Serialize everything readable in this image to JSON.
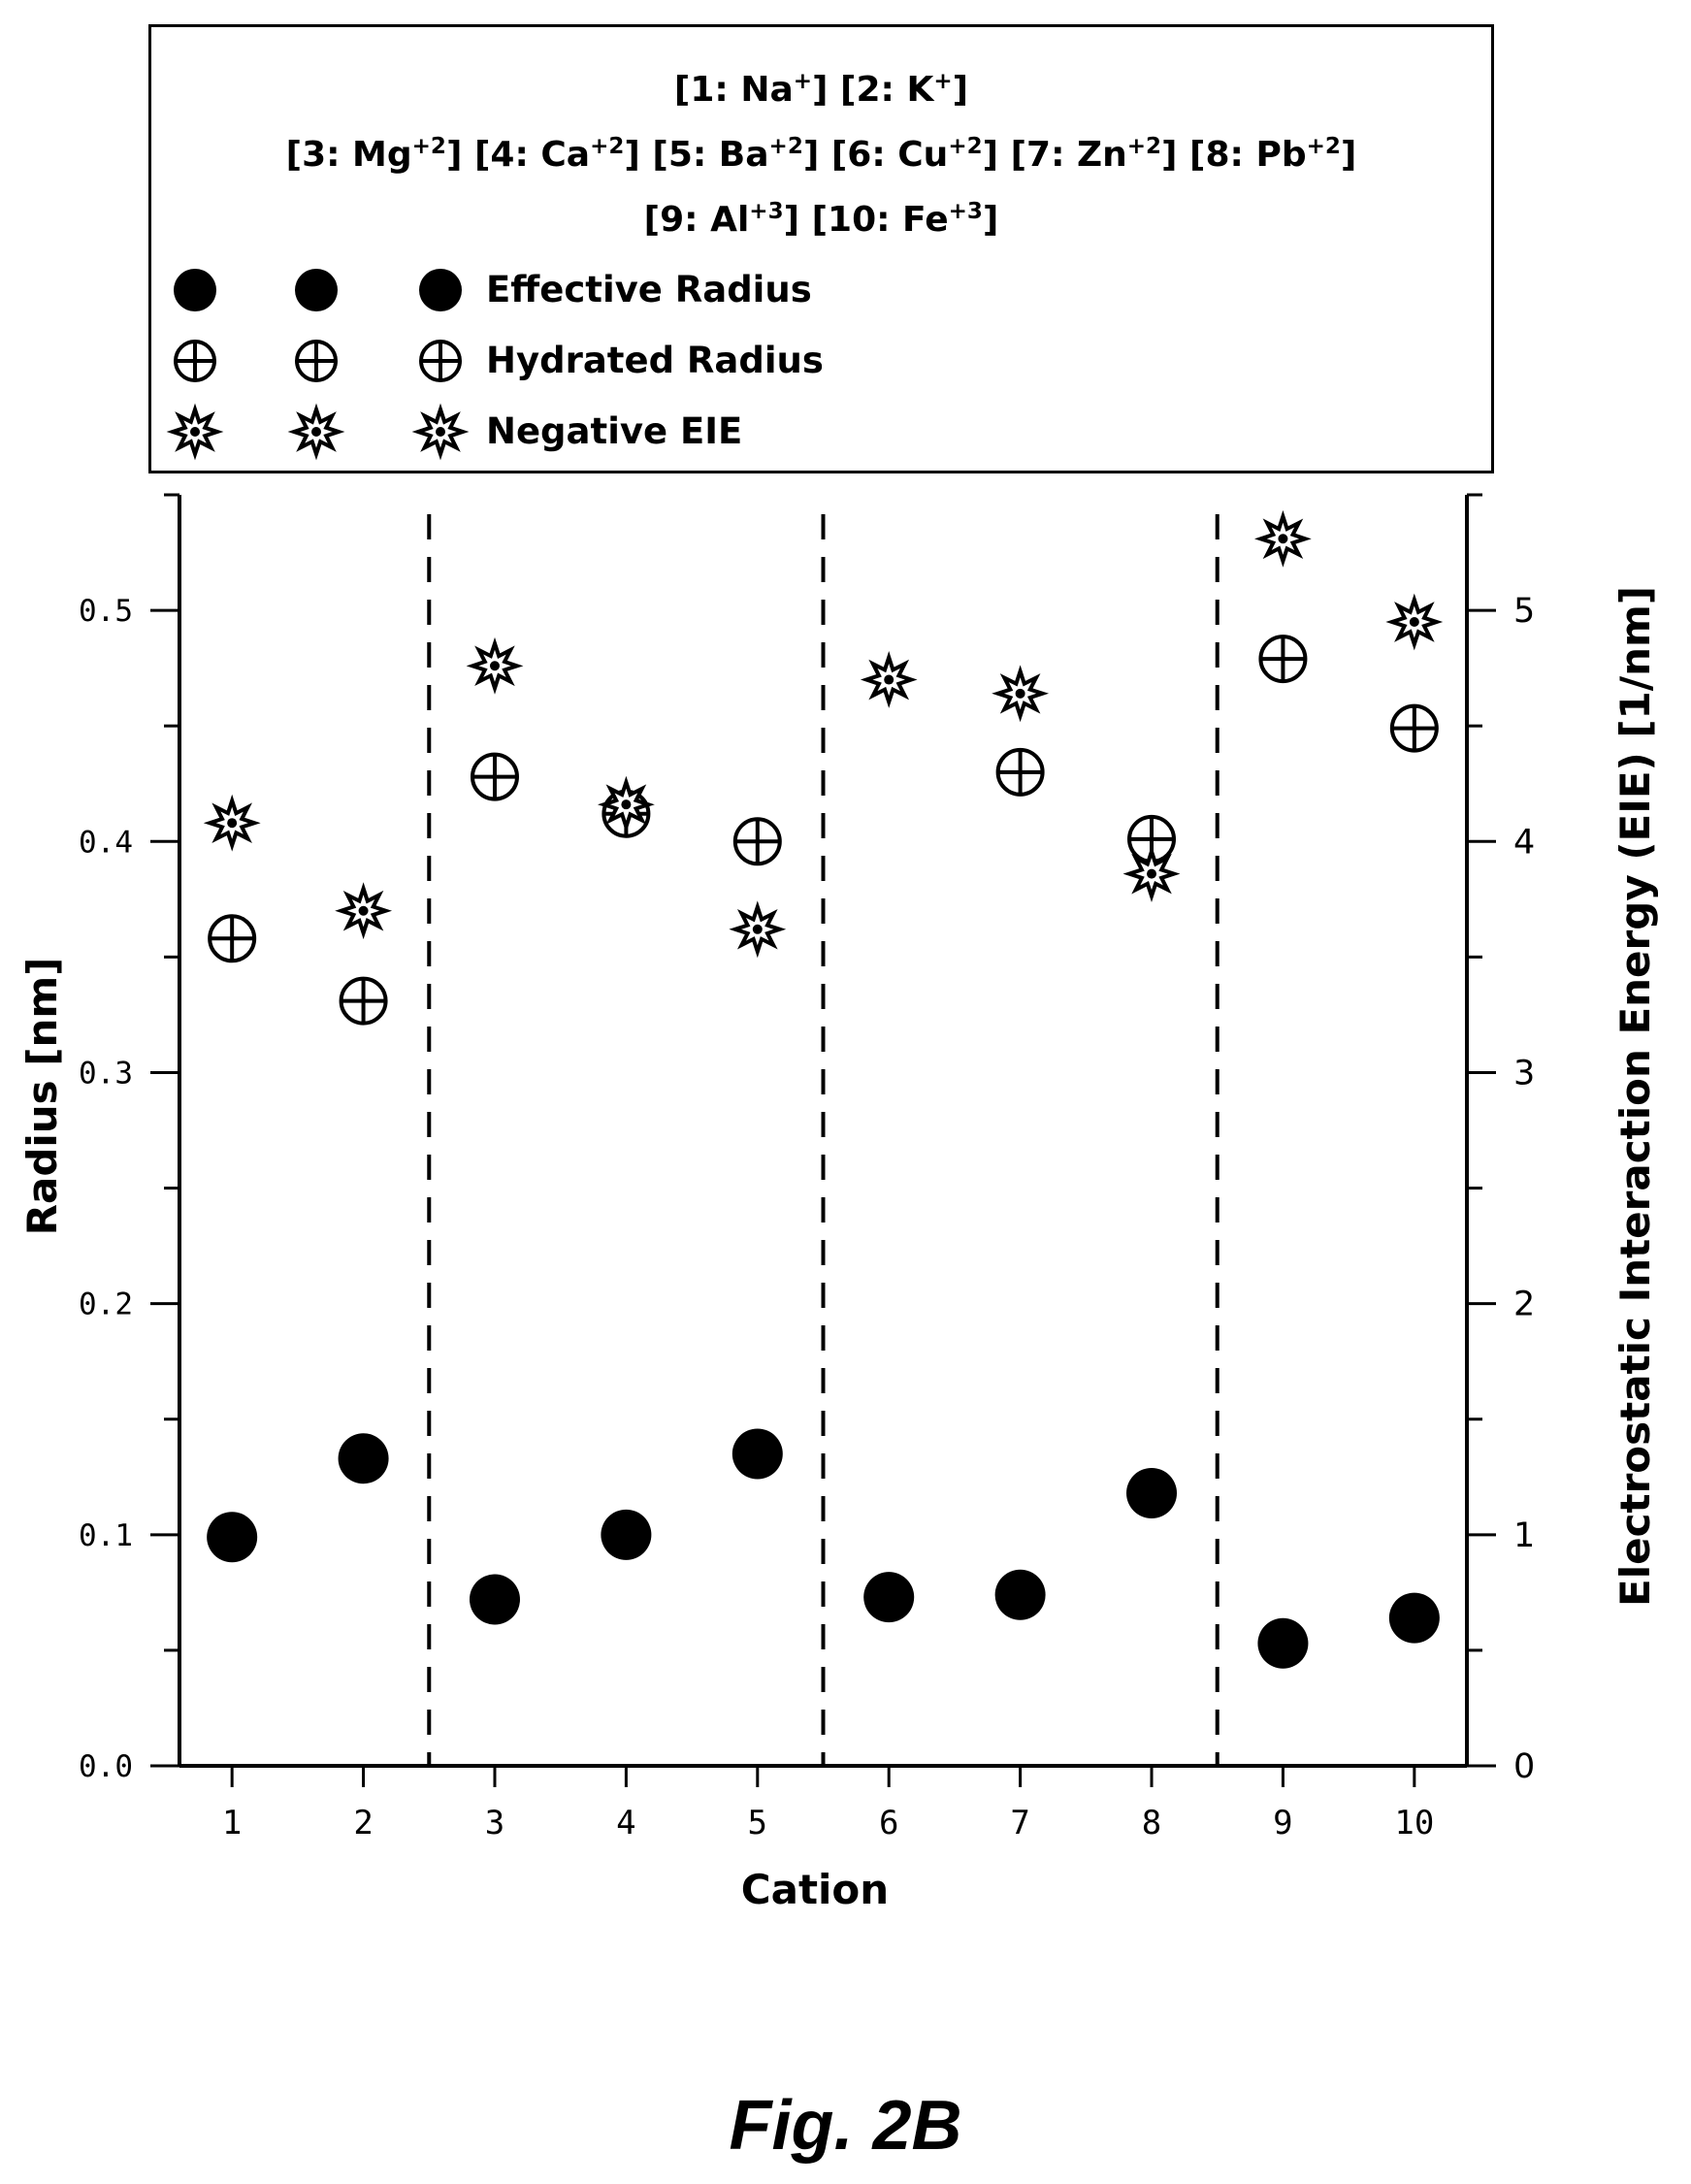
{
  "legend": {
    "line1": [
      {
        "pre": "[1: Na",
        "sup": "+",
        "post": "]"
      },
      {
        "pre": "[2: K",
        "sup": "+",
        "post": "]"
      }
    ],
    "line2": [
      {
        "pre": "[3: Mg",
        "sup": "+2",
        "post": "]"
      },
      {
        "pre": "[4: Ca",
        "sup": "+2",
        "post": "]"
      },
      {
        "pre": "[5: Ba",
        "sup": "+2",
        "post": "]"
      },
      {
        "pre": "[6: Cu",
        "sup": "+2",
        "post": "]"
      },
      {
        "pre": "[7: Zn",
        "sup": "+2",
        "post": "]"
      },
      {
        "pre": "[8: Pb",
        "sup": "+2",
        "post": "]"
      }
    ],
    "line3": [
      {
        "pre": "[9: Al",
        "sup": "+3",
        "post": "]"
      },
      {
        "pre": "[10: Fe",
        "sup": "+3",
        "post": "]"
      }
    ],
    "entries": [
      "Effective Radius",
      "Hydrated Radius",
      "Negative EIE"
    ]
  },
  "caption": "Fig. 2B",
  "chart_data": {
    "type": "scatter",
    "xlabel": "Cation",
    "ylabel": "Radius [nm]",
    "y2label": "Electrostatic Interaction Energy (EIE) [1/nm]",
    "x": [
      1,
      2,
      3,
      4,
      5,
      6,
      7,
      8,
      9,
      10
    ],
    "xticks": [
      "1",
      "2",
      "3",
      "4",
      "5",
      "6",
      "7",
      "8",
      "9",
      "10"
    ],
    "xlim": [
      0.6,
      10.4
    ],
    "ylim": [
      0,
      0.55
    ],
    "yticks": [
      "0.0",
      "0.1",
      "0.2",
      "0.3",
      "0.4",
      "0.5"
    ],
    "y2lim": [
      0,
      5.5
    ],
    "y2ticks": [
      "0",
      "1",
      "2",
      "3",
      "4",
      "5"
    ],
    "group_dividers": [
      2.5,
      5.5,
      8.5
    ],
    "series": [
      {
        "name": "Effective Radius",
        "marker": "filled-circle",
        "axis": "left",
        "values": [
          0.099,
          0.133,
          0.072,
          0.1,
          0.135,
          0.073,
          0.074,
          0.118,
          0.053,
          0.064
        ]
      },
      {
        "name": "Hydrated Radius",
        "marker": "circle-plus",
        "axis": "left",
        "values": [
          0.358,
          0.331,
          0.428,
          0.412,
          0.4,
          null,
          0.43,
          0.401,
          0.479,
          0.449
        ]
      },
      {
        "name": "Negative EIE",
        "marker": "star",
        "axis": "right",
        "values": [
          4.08,
          3.7,
          4.76,
          4.16,
          3.62,
          4.7,
          4.64,
          3.86,
          5.31,
          4.95
        ]
      }
    ]
  }
}
